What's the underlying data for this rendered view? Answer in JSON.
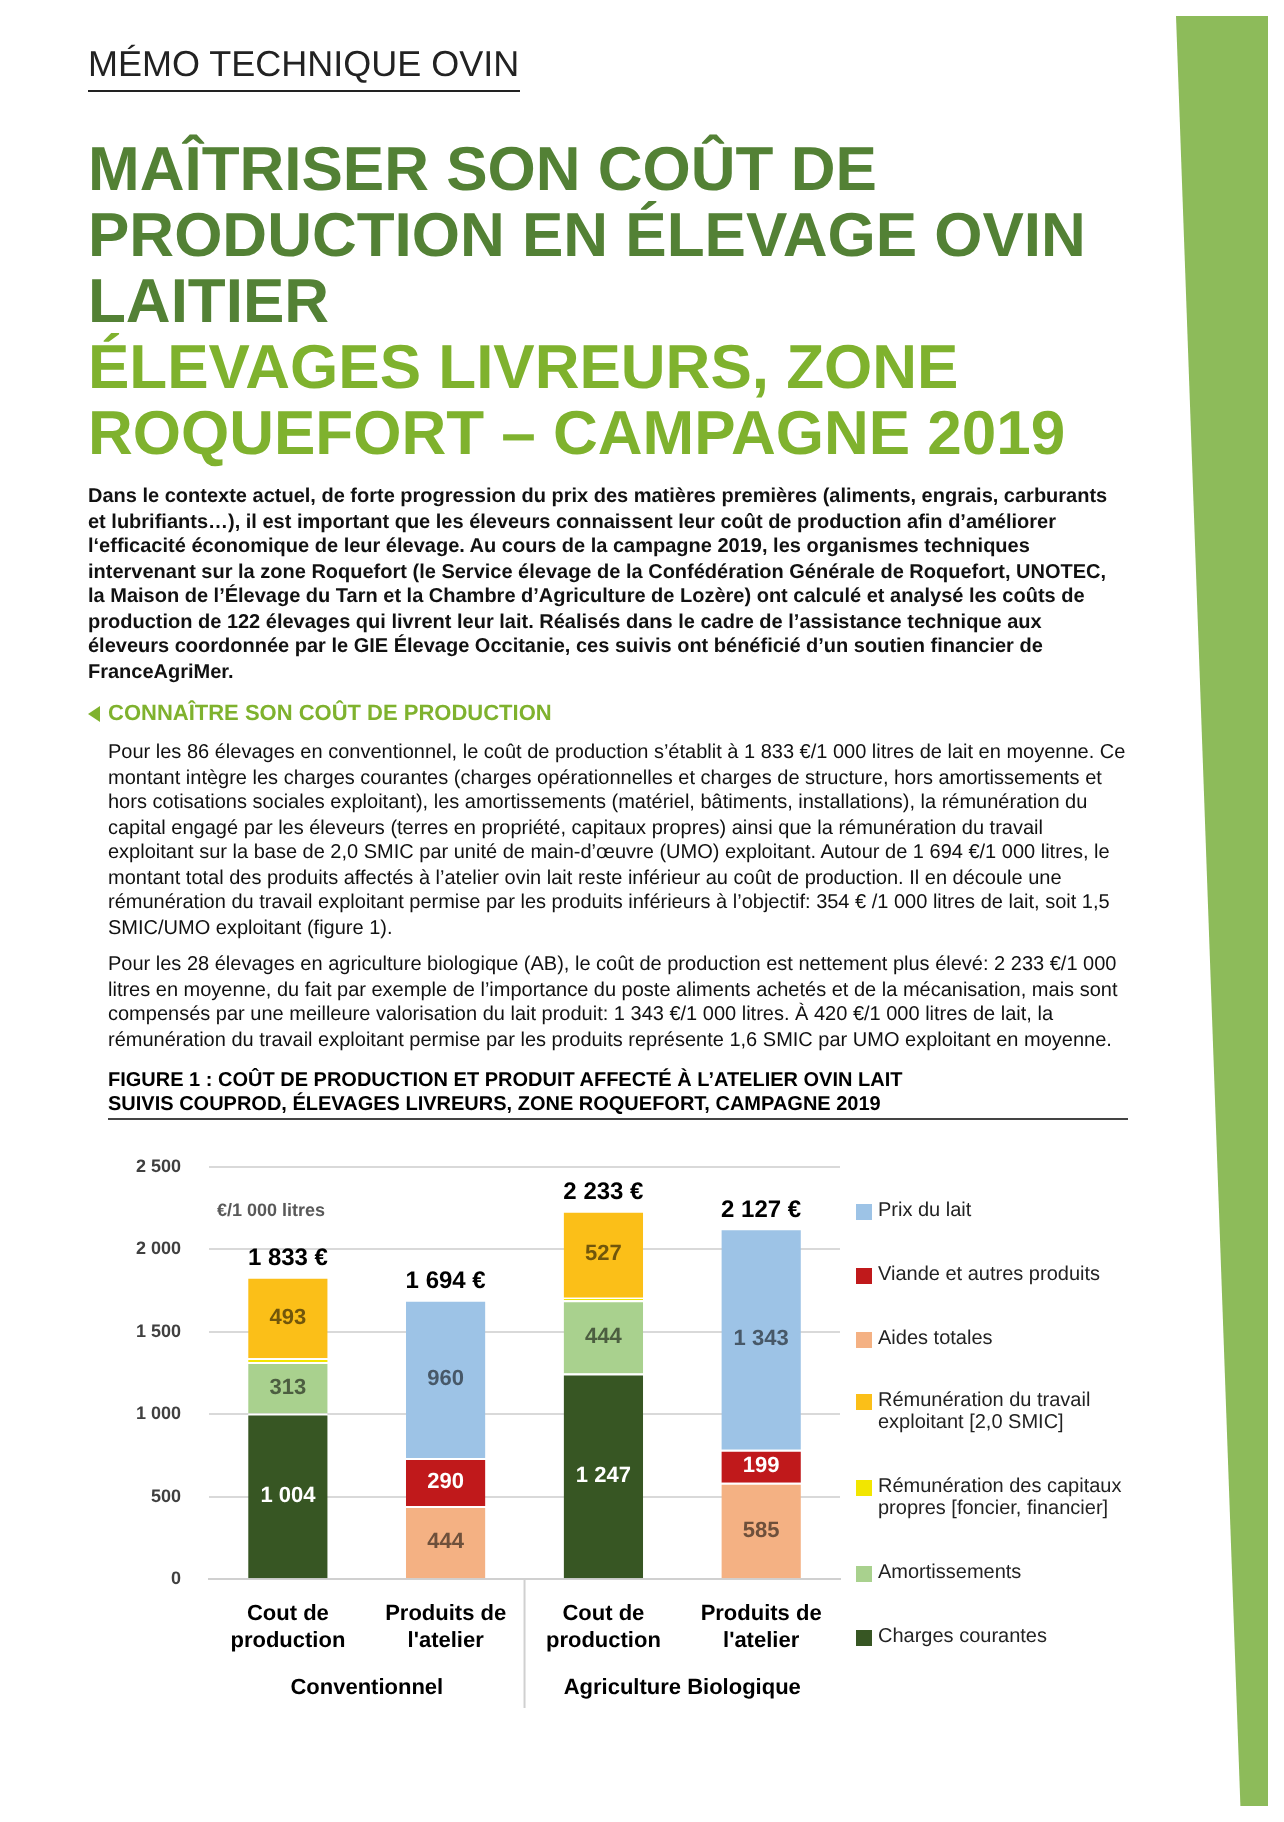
{
  "chart_data": {
    "type": "bar",
    "stacked": true,
    "title": "MAÎTRISER SON COÛT DE PRODUCTION EN ÉLEVAGE OVIN LAITIER",
    "subtitle": "ÉLEVAGES LIVREURS, ZONE ROQUEFORT – CAMPAGNE 2019",
    "ylabel": "€/1 000 litres",
    "categories": [
      "Cout de production",
      "Produits de l'atelier",
      "Cout de production",
      "Produits de l'atelier"
    ],
    "series": [
      {
        "name": "Charges courantes",
        "color": "#375623",
        "values": [
          1004,
          null,
          1247,
          null
        ],
        "value_labels": [
          "1 004",
          null,
          "1 247",
          null
        ]
      },
      {
        "name": "Amortissements",
        "color": "#a9d18e",
        "values": [
          313,
          null,
          444,
          null
        ],
        "value_labels": [
          "313",
          null,
          "444",
          null
        ]
      },
      {
        "name": "Rémunération des capitaux propres [foncier, financier]",
        "color": "#f2e600",
        "values": [
          23,
          null,
          15,
          null
        ]
      },
      {
        "name": "Rémunération du travail exploitant [2,0 SMIC]",
        "color": "#fbbf18",
        "values": [
          493,
          null,
          527,
          null
        ],
        "value_labels": [
          "493",
          null,
          "527",
          null
        ]
      },
      {
        "name": "Aides totales",
        "color": "#f4b183",
        "values": [
          null,
          444,
          null,
          585
        ],
        "value_labels": [
          null,
          "444",
          null,
          "585"
        ]
      },
      {
        "name": "Viande et autres produits",
        "color": "#c0191b",
        "values": [
          null,
          290,
          null,
          199
        ],
        "value_labels": [
          null,
          "290",
          null,
          "199"
        ]
      },
      {
        "name": "Prix du lait",
        "color": "#9dc3e6",
        "values": [
          null,
          960,
          null,
          1343
        ],
        "value_labels": [
          null,
          "960",
          null,
          "1 343"
        ]
      }
    ],
    "totals": [
      "1 833 €",
      "1 694 €",
      "2 233 €",
      "2 127 €"
    ],
    "ylim": [
      0,
      2500
    ],
    "yticks": [
      {
        "value": 0,
        "label": "0"
      },
      {
        "value": 500,
        "label": "500"
      },
      {
        "value": 1000,
        "label": "1 000"
      },
      {
        "value": 1500,
        "label": "1 500"
      },
      {
        "value": 2000,
        "label": "2 000"
      },
      {
        "value": 2500,
        "label": "2 500"
      }
    ],
    "grid": "y",
    "legend": "right",
    "annotations": [
      "MÉMO TECHNIQUE OVIN",
      "Dans le contexte actuel, de forte progression du prix des matières premières (aliments, engrais, carburants et lubrifiants…), il est important que les éleveurs connaissent leur coût de production afin d’améliorer l‘efficacité économique de leur élevage. Au cours de la campagne 2019, les organismes techniques intervenant sur la zone Roquefort (le Service élevage de la Confédération Générale de Roquefort, UNOTEC, la Maison de l’Élevage du Tarn et la Chambre d’Agriculture de Lozère) ont calculé et analysé les coûts de production de 122 élevages qui livrent leur lait. Réalisés dans le cadre de l’assistance technique aux éleveurs coordonnée par le GIE Élevage Occitanie, ces suivis ont bénéficié d’un soutien financier de FranceAgriMer.",
      "CONNAÎTRE SON COÛT DE PRODUCTION",
      "Pour les 86 élevages en conventionnel, le coût de production s’établit à 1 833 €/1 000 litres de lait en moyenne. Ce montant intègre les charges courantes (charges opérationnelles et charges de structure, hors amortissements et hors cotisations sociales exploitant), les amortissements (matériel, bâtiments, installations), la rémunération du capital engagé par les éleveurs (terres en propriété, capitaux propres) ainsi que la rémunération du travail exploitant sur la base de 2,0 SMIC par unité de main-d’œuvre (UMO) exploitant. Autour de 1 694 €/1 000 litres, le montant total des produits affectés à l’atelier ovin lait reste inférieur au coût de production. Il en découle une rémunération du travail exploitant permise par les produits inférieurs à l’objectif: 354 € /1 000 litres de lait, soit 1,5 SMIC/UMO exploitant (figure 1).",
      "Pour les 28 élevages en agriculture biologique (AB), le coût de production est nettement plus élevé: 2 233 €/1 000 litres en moyenne, du fait par exemple de l’importance du poste aliments achetés et de la mécanisation, mais sont compensés par une meilleure valorisation du lait produit: 1 343 €/1 000 litres. À 420 €/1 000 litres de lait, la rémunération du travail exploitant permise par les produits représente 1,6 SMIC par UMO exploitant en moyenne.",
      "FIGURE 1 : COÛT DE PRODUCTION ET PRODUIT AFFECTÉ À L’ATELIER OVIN LAIT",
      "SUIVIS COUPROD, ÉLEVAGES LIVREURS, ZONE ROQUEFORT, CAMPAGNE 2019",
      "Conventionnel",
      "Agriculture Biologique"
    ]
  }
}
